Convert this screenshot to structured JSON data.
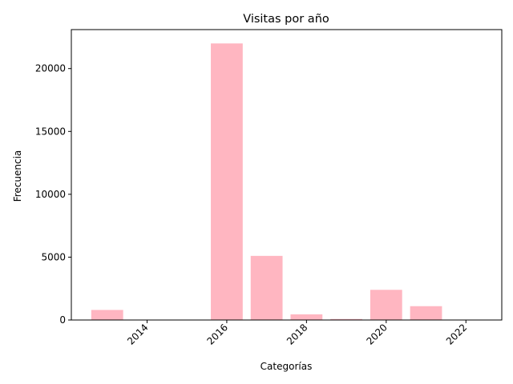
{
  "chart_data": {
    "type": "bar",
    "title": "Visitas por año",
    "xlabel": "Categorías",
    "ylabel": "Frecuencia",
    "bar_color": "#ffb6c1",
    "x": [
      2013,
      2014,
      2015,
      2016,
      2017,
      2018,
      2019,
      2020,
      2021,
      2022
    ],
    "values": [
      800,
      0,
      0,
      22000,
      5100,
      450,
      80,
      2400,
      1100,
      0
    ],
    "xlim": [
      2012.1,
      2022.9
    ],
    "ylim": [
      0,
      23100
    ],
    "x_ticks": [
      2014,
      2016,
      2018,
      2020,
      2022
    ],
    "x_tick_labels": [
      "2014",
      "2016",
      "2018",
      "2020",
      "2022"
    ],
    "y_ticks": [
      0,
      5000,
      10000,
      15000,
      20000
    ],
    "y_tick_labels": [
      "0",
      "5000",
      "10000",
      "15000",
      "20000"
    ],
    "grid": false,
    "legend": "none"
  }
}
